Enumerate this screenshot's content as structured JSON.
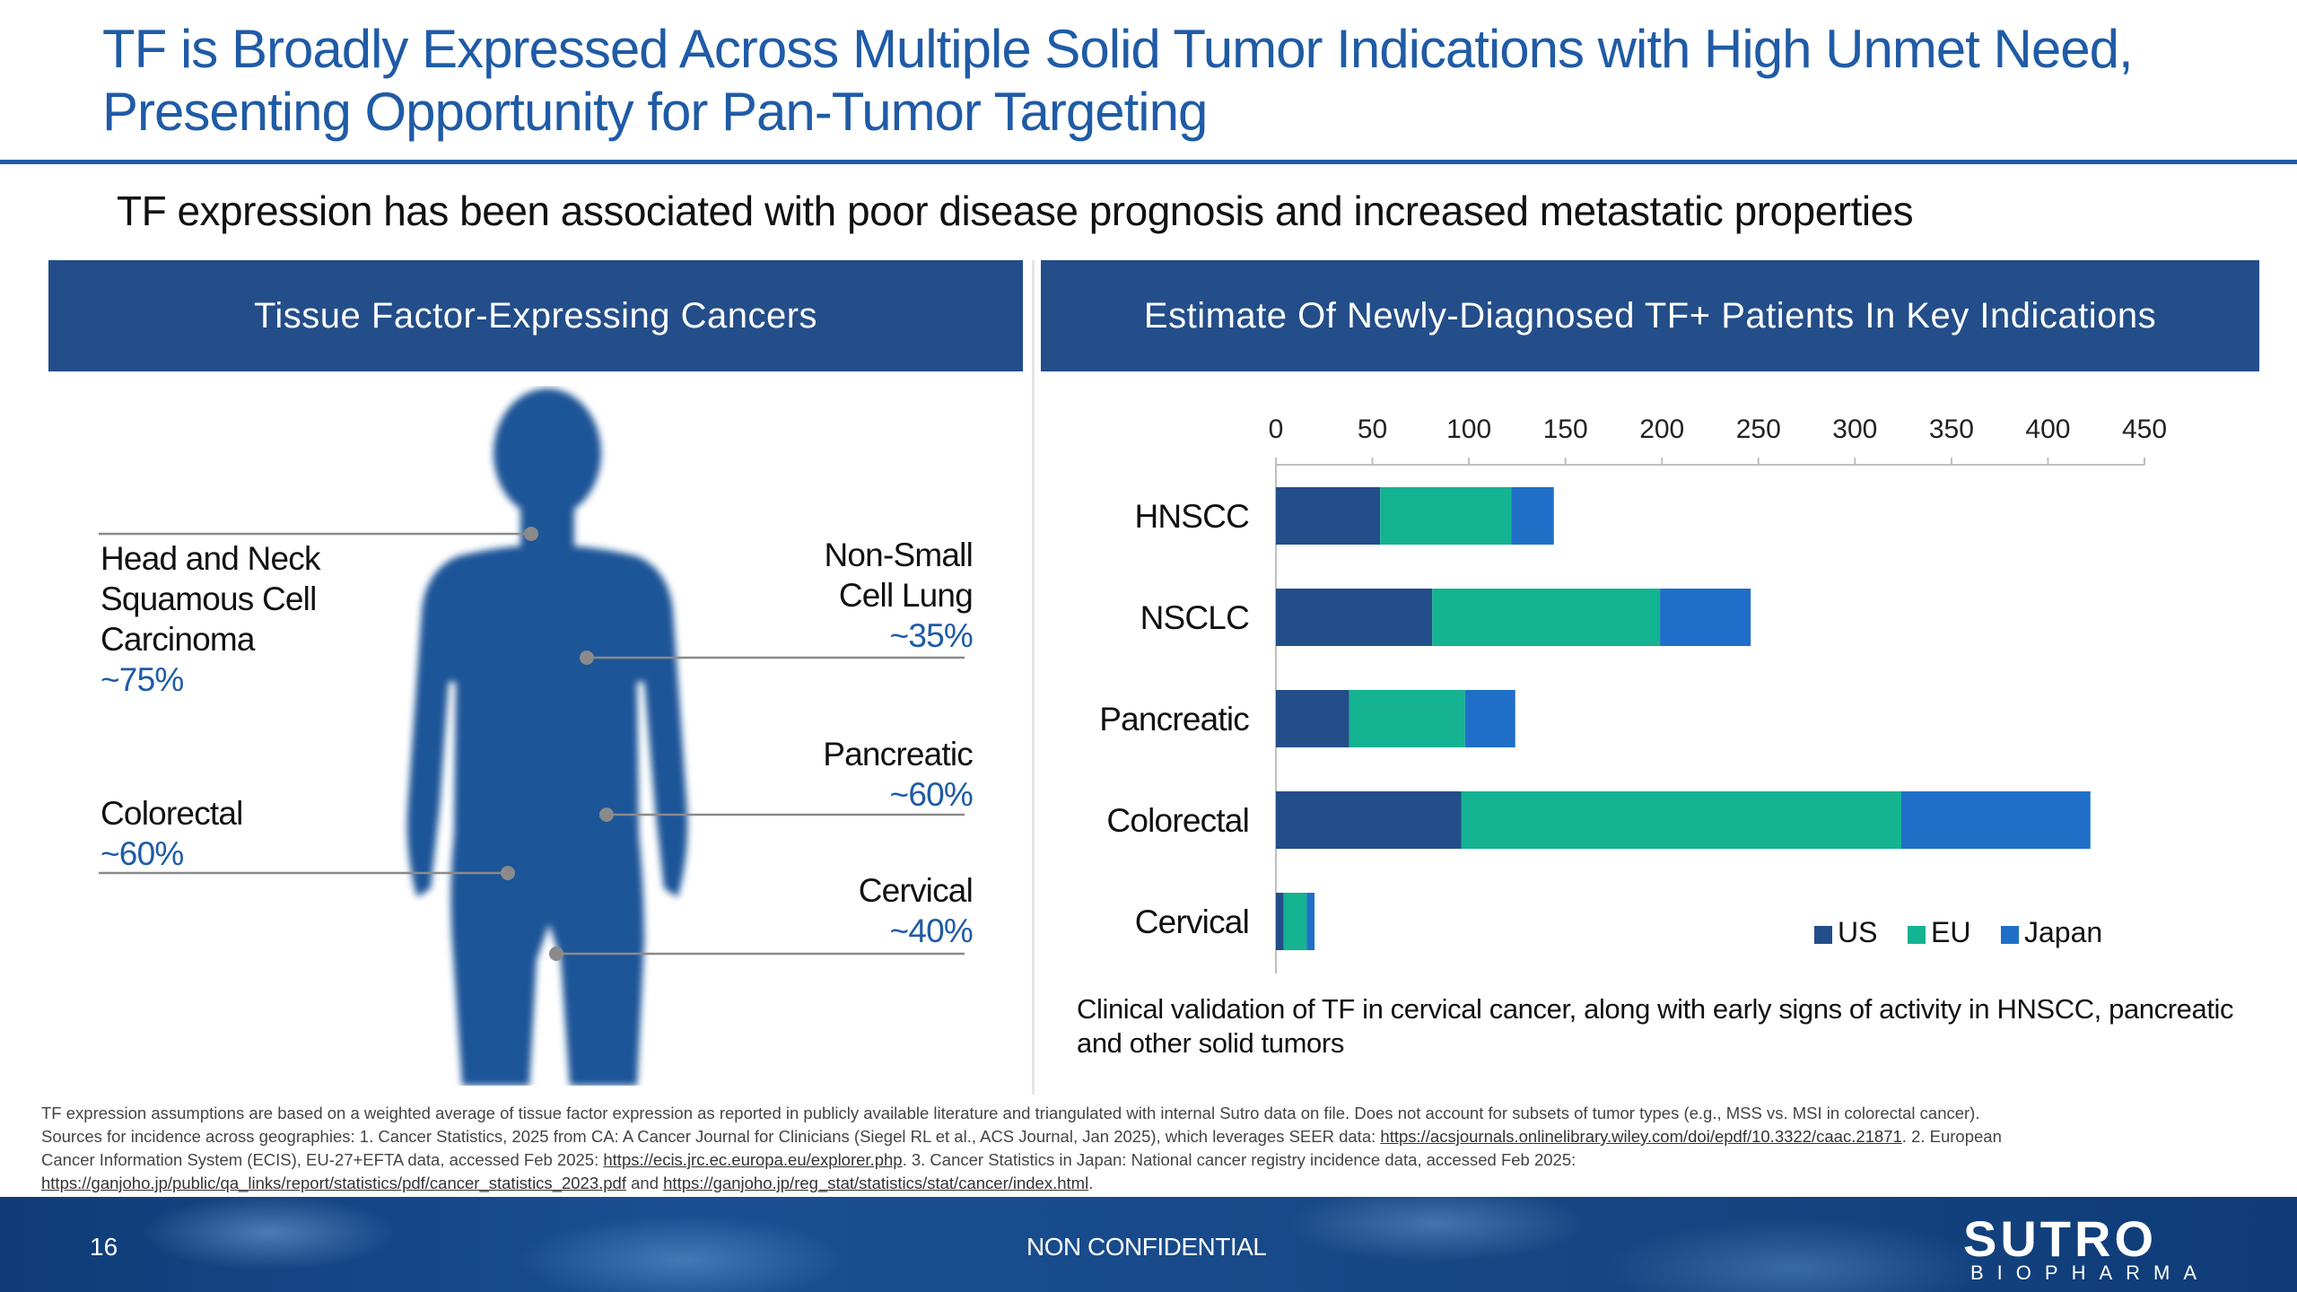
{
  "title": "TF is Broadly Expressed Across Multiple Solid Tumor Indications with High Unmet Need, Presenting Opportunity for Pan-Tumor Targeting",
  "subtitle": "TF expression has been associated with poor disease prognosis and increased metastatic properties",
  "left_panel": {
    "header": "Tissue Factor-Expressing Cancers",
    "labels": [
      {
        "name": "Head and Neck Squamous Cell Carcinoma",
        "line1": "Head and Neck",
        "line2": "Squamous Cell",
        "line3": "Carcinoma",
        "pct": "~75%"
      },
      {
        "name": "Colorectal",
        "line1": "Colorectal",
        "pct": "~60%"
      },
      {
        "name": "Non-Small Cell Lung",
        "line1": "Non-Small",
        "line2": "Cell Lung",
        "pct": "~35%"
      },
      {
        "name": "Pancreatic",
        "line1": "Pancreatic",
        "pct": "~60%"
      },
      {
        "name": "Cervical",
        "line1": "Cervical",
        "pct": "~40%"
      }
    ]
  },
  "right_panel": {
    "header": "Estimate Of Newly-Diagnosed TF+ Patients In Key Indications",
    "annotation": "Clinical validation of TF in cervical cancer, along with early signs of activity in HNSCC, pancreatic and other solid tumors"
  },
  "chart_data": {
    "type": "bar",
    "orientation": "horizontal",
    "stacked": true,
    "categories": [
      "HNSCC",
      "NSCLC",
      "Pancreatic",
      "Colorectal",
      "Cervical"
    ],
    "series": [
      {
        "name": "US",
        "color": "#234e8a",
        "values": [
          54,
          81,
          38,
          96,
          4
        ]
      },
      {
        "name": "EU",
        "color": "#14b392",
        "values": [
          68,
          118,
          60,
          228,
          12
        ]
      },
      {
        "name": "Japan",
        "color": "#1f6fc8",
        "values": [
          22,
          47,
          26,
          98,
          4
        ]
      }
    ],
    "xlim": [
      0,
      450
    ],
    "xticks": [
      "0",
      "50",
      "100",
      "150",
      "200",
      "250",
      "300",
      "350",
      "400",
      "450"
    ],
    "tick_position": "top",
    "legend_position": "bottom-right",
    "grid": false
  },
  "footnote": {
    "line1": "TF expression assumptions are based on a weighted average of tissue factor expression as reported in publicly available literature and triangulated with internal Sutro data on file. Does not account for subsets of tumor types (e.g., MSS vs. MSI in colorectal cancer).",
    "line2a": "Sources for incidence across geographies: 1. Cancer Statistics, 2025 from CA: A Cancer Journal for Clinicians (Siegel RL et al., ACS Journal, Jan 2025), which leverages SEER data: ",
    "link1": "https://acsjournals.onlinelibrary.wiley.com/doi/epdf/10.3322/caac.21871",
    "line2b": ". 2. European",
    "line3a": "Cancer Information System (ECIS), EU-27+EFTA data, accessed Feb 2025: ",
    "link2": "https://ecis.jrc.ec.europa.eu/explorer.php",
    "line3b": ". 3. Cancer Statistics in Japan: National cancer registry incidence data, accessed Feb 2025:",
    "link3": "https://ganjoho.jp/public/qa_links/report/statistics/pdf/cancer_statistics_2023.pdf",
    "line4and": " and ",
    "link4": "https://ganjoho.jp/reg_stat/statistics/stat/cancer/index.html",
    "line4end": "."
  },
  "footer": {
    "page_number": "16",
    "classification": "NON CONFIDENTIAL",
    "logo_main": "SUTRO",
    "logo_sub": "BIOPHARMA"
  }
}
